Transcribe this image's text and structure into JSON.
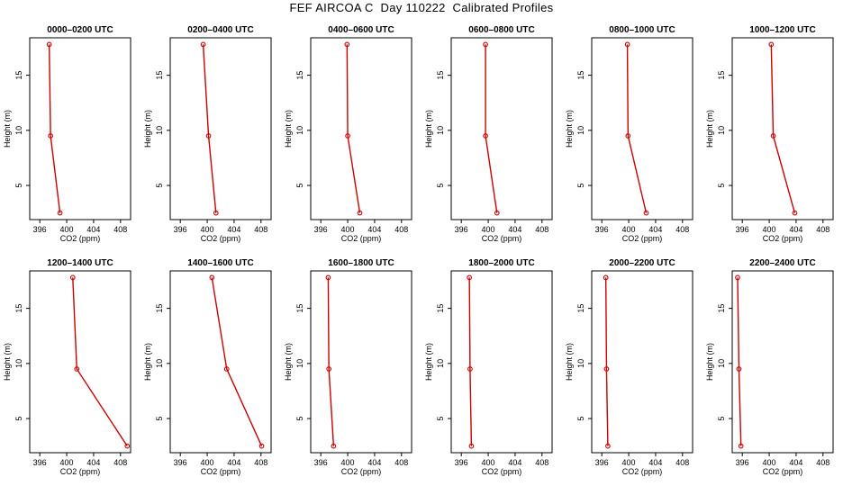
{
  "title": "FEF AIRCOA C  Day 110222  Calibrated Profiles",
  "colors": {
    "series": "#cc0000",
    "axis": "#000000"
  },
  "chart_data": {
    "type": "line",
    "xlabel": "CO2 (ppm)",
    "ylabel": "Height (m)",
    "xlim": [
      394.5,
      409.5
    ],
    "ylim": [
      1.9,
      18.4
    ],
    "xticks": [
      396,
      400,
      404,
      408
    ],
    "yticks": [
      5,
      10,
      15
    ],
    "panels": [
      {
        "title": "0000–0200 UTC",
        "x": [
          397.4,
          397.6,
          399.0
        ],
        "y": [
          17.8,
          9.5,
          2.5
        ]
      },
      {
        "title": "0200–0400 UTC",
        "x": [
          399.4,
          400.2,
          401.3
        ],
        "y": [
          17.8,
          9.5,
          2.5
        ]
      },
      {
        "title": "0400–0600 UTC",
        "x": [
          399.9,
          400.0,
          401.8
        ],
        "y": [
          17.8,
          9.5,
          2.5
        ]
      },
      {
        "title": "0600–0800 UTC",
        "x": [
          399.6,
          399.6,
          401.3
        ],
        "y": [
          17.8,
          9.5,
          2.5
        ]
      },
      {
        "title": "0800–1000 UTC",
        "x": [
          399.8,
          399.9,
          402.6
        ],
        "y": [
          17.8,
          9.5,
          2.5
        ]
      },
      {
        "title": "1000–1200 UTC",
        "x": [
          400.3,
          400.6,
          403.8
        ],
        "y": [
          17.8,
          9.5,
          2.5
        ]
      },
      {
        "title": "1200–1400 UTC",
        "x": [
          400.9,
          401.5,
          409.0
        ],
        "y": [
          17.8,
          9.5,
          2.5
        ]
      },
      {
        "title": "1400–1600 UTC",
        "x": [
          400.7,
          402.9,
          408.1
        ],
        "y": [
          17.8,
          9.5,
          2.5
        ]
      },
      {
        "title": "1600–1800 UTC",
        "x": [
          397.1,
          397.2,
          397.9
        ],
        "y": [
          17.8,
          9.5,
          2.5
        ]
      },
      {
        "title": "1800–2000 UTC",
        "x": [
          397.2,
          397.3,
          397.5
        ],
        "y": [
          17.8,
          9.5,
          2.5
        ]
      },
      {
        "title": "2000–2200 UTC",
        "x": [
          396.6,
          396.7,
          396.9
        ],
        "y": [
          17.8,
          9.5,
          2.5
        ]
      },
      {
        "title": "2200–2400 UTC",
        "x": [
          395.3,
          395.5,
          395.8
        ],
        "y": [
          17.8,
          9.5,
          2.5
        ]
      }
    ]
  }
}
